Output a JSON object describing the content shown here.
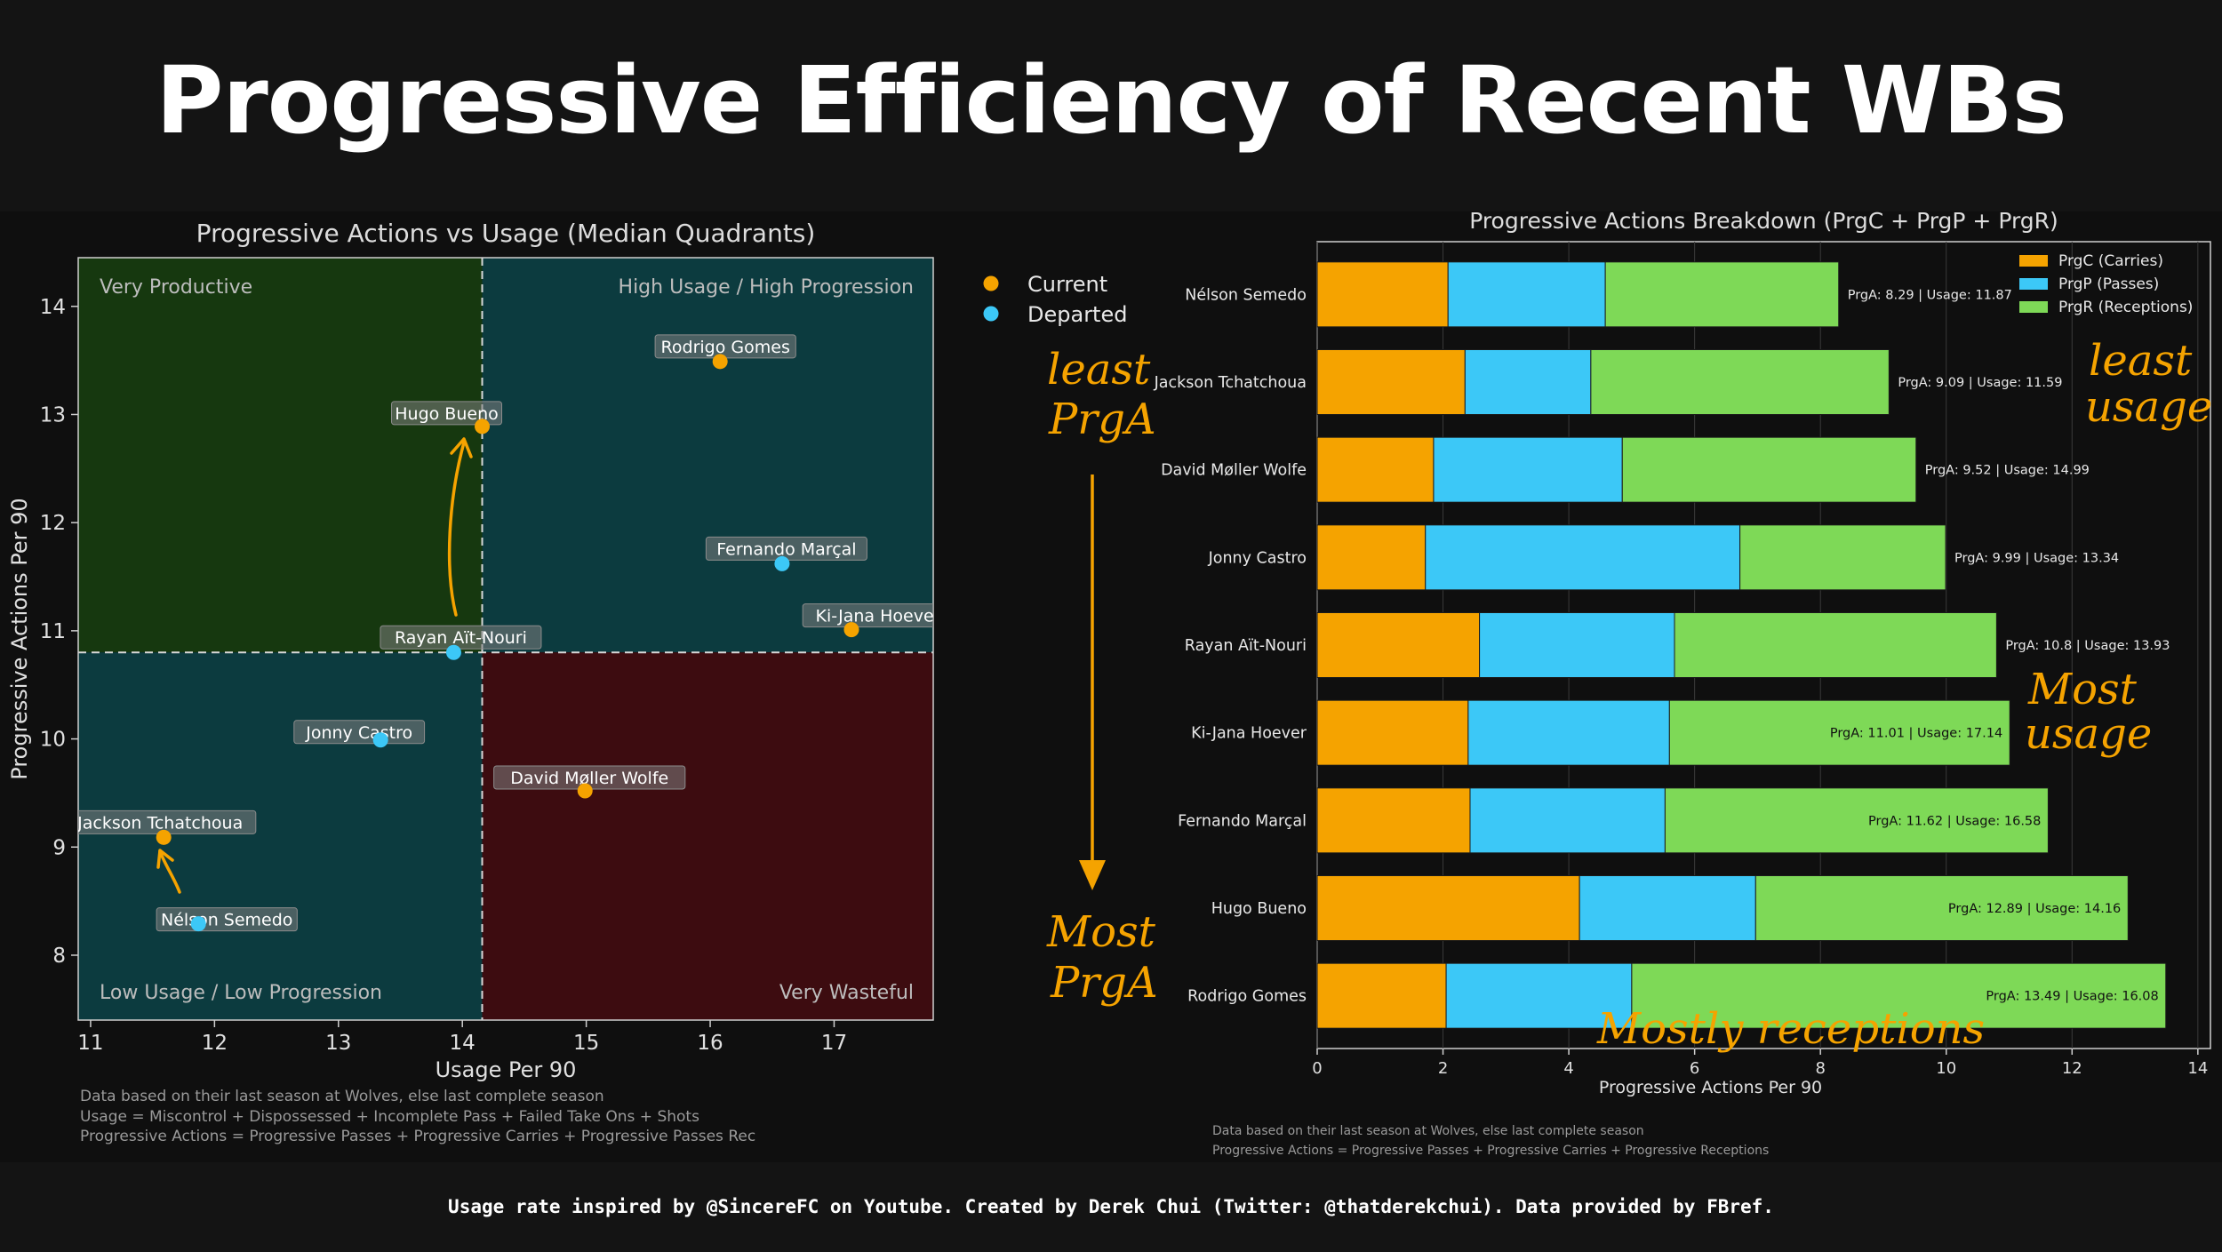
{
  "title": "Progressive Efficiency of Recent WBs",
  "footer": "Usage rate inspired by @SincereFC on Youtube. Created by Derek Chui (Twitter: @thatderekchui). Data provided by FBref.",
  "colors": {
    "current": "#f5a300",
    "departed": "#3cc8f7",
    "carries": "#f5a300",
    "passes": "#3cc8f7",
    "receptions": "#7ed957",
    "very_productive": "#16380f",
    "teal": "#0c3b3f",
    "very_wasteful": "#3d0c10"
  },
  "left_notes": [
    "Data based on their last season at Wolves, else last complete season",
    "Usage = Miscontrol + Dispossessed + Incomplete Pass + Failed Take Ons + Shots",
    "Progressive Actions = Progressive Passes + Progressive Carries + Progressive Passes Rec"
  ],
  "right_notes": [
    "Data based on their last season at Wolves, else last complete season",
    "Progressive Actions = Progressive Passes + Progressive Carries + Progressive Receptions"
  ],
  "annotations": {
    "least_prga": [
      "least",
      "PrgA"
    ],
    "most_prga": [
      "Most",
      "PrgA"
    ],
    "least_usage": [
      "least",
      "usage"
    ],
    "most_usage": [
      "Most",
      "usage"
    ],
    "mostly_receptions": "Mostly receptions"
  },
  "chart_data": [
    {
      "type": "scatter",
      "title": "Progressive Actions vs Usage (Median Quadrants)",
      "xlabel": "Usage Per 90",
      "ylabel": "Progressive Actions Per 90",
      "xlim": [
        10.9,
        17.8
      ],
      "ylim": [
        7.4,
        14.45
      ],
      "xticks": [
        11,
        12,
        13,
        14,
        15,
        16,
        17
      ],
      "yticks": [
        8,
        9,
        10,
        11,
        12,
        13,
        14
      ],
      "median_x": 14.16,
      "median_y": 10.8,
      "quadrant_labels": {
        "top_left": "Very Productive",
        "top_right": "High Usage / High Progression",
        "bottom_left": "Low Usage / Low Progression",
        "bottom_right": "Very Wasteful"
      },
      "legend": {
        "position": "outside-right",
        "current": "Current",
        "departed": "Departed"
      },
      "points": [
        {
          "name": "Rodrigo Gomes",
          "x": 16.08,
          "y": 13.49,
          "status": "current"
        },
        {
          "name": "Hugo Bueno",
          "x": 14.16,
          "y": 12.89,
          "status": "current"
        },
        {
          "name": "Fernando Marçal",
          "x": 16.58,
          "y": 11.62,
          "status": "departed"
        },
        {
          "name": "Ki-Jana Hoever",
          "x": 17.14,
          "y": 11.01,
          "status": "current"
        },
        {
          "name": "Rayan Aït-Nouri",
          "x": 13.93,
          "y": 10.8,
          "status": "departed"
        },
        {
          "name": "Jonny Castro",
          "x": 13.34,
          "y": 9.99,
          "status": "departed"
        },
        {
          "name": "David Møller Wolfe",
          "x": 14.99,
          "y": 9.52,
          "status": "current"
        },
        {
          "name": "Jackson Tchatchoua",
          "x": 11.59,
          "y": 9.09,
          "status": "current"
        },
        {
          "name": "Nélson Semedo",
          "x": 11.87,
          "y": 8.29,
          "status": "departed"
        }
      ]
    },
    {
      "type": "bar",
      "orientation": "horizontal",
      "stacked": true,
      "title": "Progressive Actions Breakdown (PrgC + PrgP + PrgR)",
      "xlabel": "Progressive Actions Per 90",
      "xlim": [
        0,
        14.2
      ],
      "xticks": [
        0,
        2,
        4,
        6,
        8,
        10,
        12,
        14
      ],
      "legend_position": "top-right",
      "categories": [
        "Nélson Semedo",
        "Jackson Tchatchoua",
        "David Møller Wolfe",
        "Jonny Castro",
        "Rayan Aït-Nouri",
        "Ki-Jana Hoever",
        "Fernando Marçal",
        "Hugo Bueno",
        "Rodrigo Gomes"
      ],
      "series": [
        {
          "name": "PrgC (Carries)",
          "values": [
            2.08,
            2.35,
            1.85,
            1.72,
            2.58,
            2.4,
            2.43,
            4.17,
            2.05
          ]
        },
        {
          "name": "PrgP (Passes)",
          "values": [
            2.5,
            2.0,
            3.0,
            5.0,
            3.1,
            3.2,
            3.1,
            2.8,
            2.95
          ]
        },
        {
          "name": "PrgR (Receptions)",
          "values": [
            3.71,
            4.74,
            4.67,
            3.27,
            5.12,
            5.41,
            6.09,
            5.92,
            8.49
          ]
        }
      ],
      "bar_labels": [
        "PrgA: 8.29 | Usage: 11.87",
        "PrgA: 9.09 | Usage: 11.59",
        "PrgA: 9.52 | Usage: 14.99",
        "PrgA: 9.99 | Usage: 13.34",
        "PrgA: 10.8 | Usage: 13.93",
        "PrgA: 11.01 | Usage: 17.14",
        "PrgA: 11.62 | Usage: 16.58",
        "PrgA: 12.89 | Usage: 14.16",
        "PrgA: 13.49 | Usage: 16.08"
      ],
      "bar_label_inside_from": 5
    }
  ]
}
